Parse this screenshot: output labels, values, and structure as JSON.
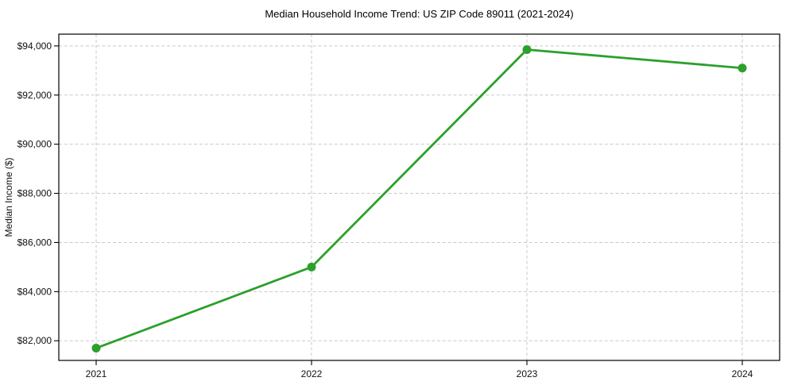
{
  "chart_data": {
    "type": "line",
    "title": "Median Household Income Trend: US ZIP Code 89011 (2021-2024)",
    "xlabel": "",
    "ylabel": "Median Income ($)",
    "categories": [
      "2021",
      "2022",
      "2023",
      "2024"
    ],
    "series": [
      {
        "color": "#2ca02c",
        "values": [
          81700,
          85000,
          93850,
          93100
        ]
      }
    ],
    "y_ticks": [
      82000,
      84000,
      86000,
      88000,
      90000,
      92000,
      94000
    ],
    "y_tick_labels": [
      "$82,000",
      "$84,000",
      "$86,000",
      "$88,000",
      "$90,000",
      "$92,000",
      "$94,000"
    ],
    "ylim": [
      81200,
      94480
    ],
    "grid": true,
    "grid_style": "dashed",
    "legend_position": "none",
    "marker": "circle",
    "colors": {
      "line": "#2ca02c",
      "grid": "#c9c9c9",
      "axis": "#000000",
      "text": "#111111",
      "background": "#ffffff"
    }
  }
}
